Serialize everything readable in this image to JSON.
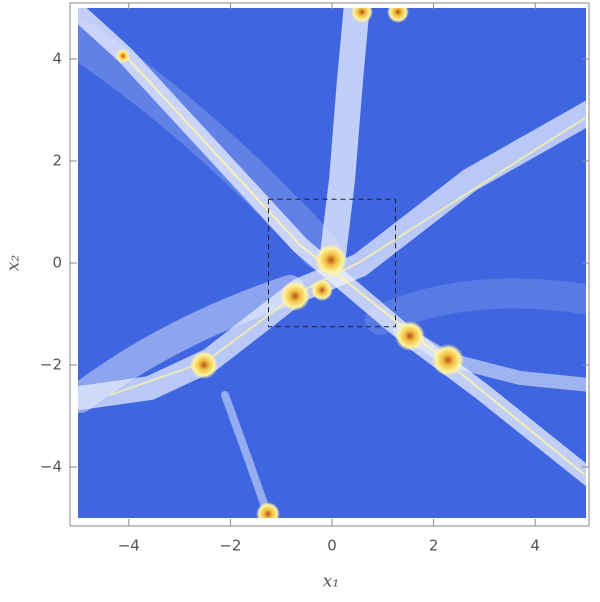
{
  "chart_data": {
    "type": "density",
    "xlabel": "x₁",
    "ylabel": "x₂",
    "xlim": [
      -5,
      5
    ],
    "ylim": [
      -5,
      5
    ],
    "xticks": [
      {
        "value": -4,
        "label": "−4"
      },
      {
        "value": -2,
        "label": "−2"
      },
      0,
      2,
      4
    ],
    "yticks": [
      {
        "value": -4,
        "label": "−4"
      },
      {
        "value": -2,
        "label": "−2"
      },
      0,
      2,
      4
    ],
    "highlight_box": {
      "x": [
        -1.25,
        1.25
      ],
      "y": [
        -1.25,
        1.25
      ]
    },
    "color": "#3f66e0"
  }
}
